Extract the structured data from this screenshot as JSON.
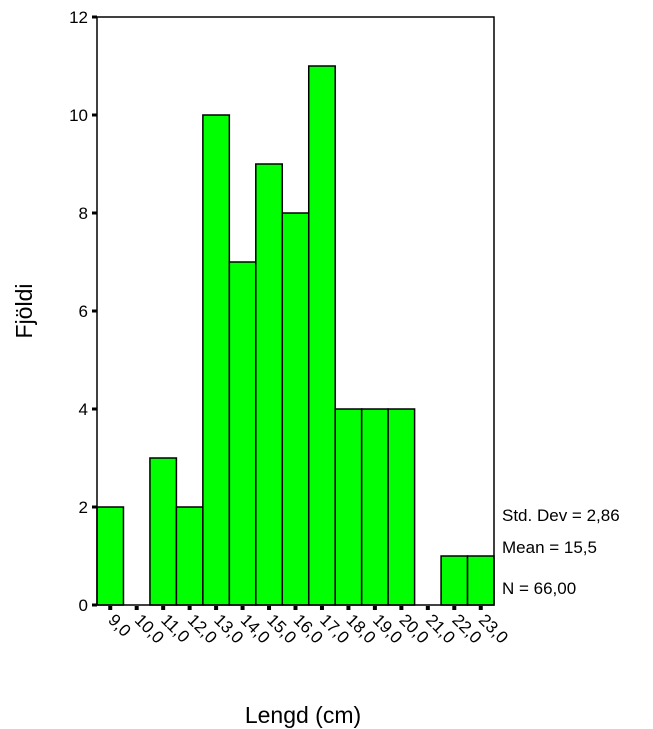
{
  "chart_data": {
    "type": "bar",
    "title": "",
    "xlabel": "Lengd (cm)",
    "ylabel": "Fjöldi",
    "ylim": [
      0,
      12
    ],
    "yticks": [
      "0",
      "2",
      "4",
      "6",
      "8",
      "10",
      "12"
    ],
    "categories": [
      "9,0",
      "10,0",
      "11,0",
      "12,0",
      "13,0",
      "14,0",
      "15,0",
      "16,0",
      "17,0",
      "18,0",
      "19,0",
      "20,0",
      "21,0",
      "22,0",
      "23,0"
    ],
    "values": [
      2,
      0,
      3,
      2,
      10,
      7,
      9,
      8,
      11,
      4,
      4,
      4,
      0,
      1,
      1
    ],
    "bar_color": "#00ff00",
    "grid": false,
    "stats": [
      "Std. Dev = 2,86",
      "Mean = 15,5",
      "N = 66,00"
    ]
  }
}
